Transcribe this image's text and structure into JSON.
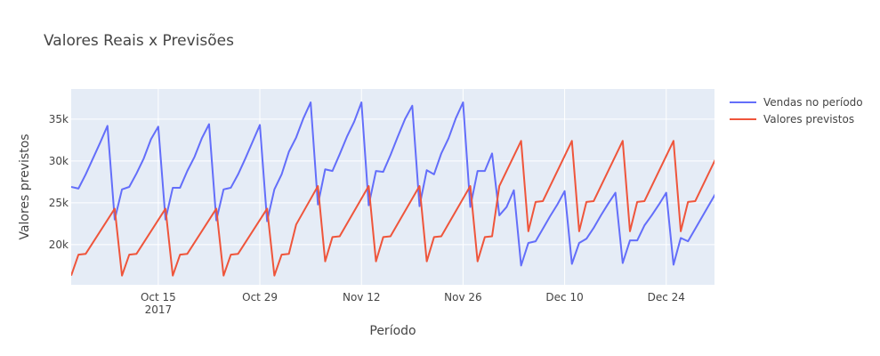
{
  "chart_data": {
    "type": "line",
    "title": "Valores Reais x Previsões",
    "xlabel": "Período",
    "ylabel": "Valores previstos",
    "grid": true,
    "legend_position": "top-right",
    "background_color": "#e5ecf6",
    "xlim": [
      "2017-10-03",
      "2017-12-30"
    ],
    "ylim": [
      15200,
      38600
    ],
    "x_ticks": [
      {
        "date": "2017-10-15",
        "label": "Oct 15",
        "sublabel": "2017"
      },
      {
        "date": "2017-10-29",
        "label": "Oct 29",
        "sublabel": ""
      },
      {
        "date": "2017-11-12",
        "label": "Nov 12",
        "sublabel": ""
      },
      {
        "date": "2017-11-26",
        "label": "Nov 26",
        "sublabel": ""
      },
      {
        "date": "2017-12-10",
        "label": "Dec 10",
        "sublabel": ""
      },
      {
        "date": "2017-12-24",
        "label": "Dec 24",
        "sublabel": ""
      }
    ],
    "y_ticks": [
      {
        "value": 20000,
        "label": "20k"
      },
      {
        "value": 25000,
        "label": "25k"
      },
      {
        "value": 30000,
        "label": "30k"
      },
      {
        "value": 35000,
        "label": "35k"
      }
    ],
    "series": [
      {
        "name": "Vendas no período",
        "color": "#636efa",
        "points": [
          [
            "2017-10-03",
            26900
          ],
          [
            "2017-10-04",
            26700
          ],
          [
            "2017-10-05",
            28400
          ],
          [
            "2017-10-06",
            30300
          ],
          [
            "2017-10-07",
            32200
          ],
          [
            "2017-10-08",
            34200
          ],
          [
            "2017-10-09",
            23000
          ],
          [
            "2017-10-10",
            26600
          ],
          [
            "2017-10-11",
            26900
          ],
          [
            "2017-10-12",
            28500
          ],
          [
            "2017-10-13",
            30300
          ],
          [
            "2017-10-14",
            32600
          ],
          [
            "2017-10-15",
            34100
          ],
          [
            "2017-10-16",
            23000
          ],
          [
            "2017-10-17",
            26800
          ],
          [
            "2017-10-18",
            26800
          ],
          [
            "2017-10-19",
            28800
          ],
          [
            "2017-10-20",
            30500
          ],
          [
            "2017-10-21",
            32700
          ],
          [
            "2017-10-22",
            34400
          ],
          [
            "2017-10-23",
            22900
          ],
          [
            "2017-10-24",
            26600
          ],
          [
            "2017-10-25",
            26800
          ],
          [
            "2017-10-26",
            28400
          ],
          [
            "2017-10-27",
            30300
          ],
          [
            "2017-10-28",
            32300
          ],
          [
            "2017-10-29",
            34300
          ],
          [
            "2017-10-30",
            22800
          ],
          [
            "2017-10-31",
            26600
          ],
          [
            "2017-11-01",
            28400
          ],
          [
            "2017-11-02",
            31100
          ],
          [
            "2017-11-03",
            32800
          ],
          [
            "2017-11-04",
            35100
          ],
          [
            "2017-11-05",
            37000
          ],
          [
            "2017-11-06",
            24800
          ],
          [
            "2017-11-07",
            29000
          ],
          [
            "2017-11-08",
            28800
          ],
          [
            "2017-11-09",
            30800
          ],
          [
            "2017-11-10",
            32900
          ],
          [
            "2017-11-11",
            34700
          ],
          [
            "2017-11-12",
            37000
          ],
          [
            "2017-11-13",
            24700
          ],
          [
            "2017-11-14",
            28800
          ],
          [
            "2017-11-15",
            28700
          ],
          [
            "2017-11-16",
            30700
          ],
          [
            "2017-11-17",
            32900
          ],
          [
            "2017-11-18",
            35000
          ],
          [
            "2017-11-19",
            36600
          ],
          [
            "2017-11-20",
            24600
          ],
          [
            "2017-11-21",
            28900
          ],
          [
            "2017-11-22",
            28400
          ],
          [
            "2017-11-23",
            30900
          ],
          [
            "2017-11-24",
            32700
          ],
          [
            "2017-11-25",
            35100
          ],
          [
            "2017-11-26",
            37000
          ],
          [
            "2017-11-27",
            24500
          ],
          [
            "2017-11-28",
            28800
          ],
          [
            "2017-11-29",
            28800
          ],
          [
            "2017-11-30",
            30900
          ],
          [
            "2017-12-01",
            23500
          ],
          [
            "2017-12-02",
            24500
          ],
          [
            "2017-12-03",
            26500
          ],
          [
            "2017-12-04",
            17500
          ],
          [
            "2017-12-05",
            20200
          ],
          [
            "2017-12-06",
            20400
          ],
          [
            "2017-12-07",
            21900
          ],
          [
            "2017-12-08",
            23400
          ],
          [
            "2017-12-09",
            24800
          ],
          [
            "2017-12-10",
            26400
          ],
          [
            "2017-12-11",
            17700
          ],
          [
            "2017-12-12",
            20200
          ],
          [
            "2017-12-13",
            20700
          ],
          [
            "2017-12-14",
            22000
          ],
          [
            "2017-12-15",
            23500
          ],
          [
            "2017-12-16",
            24900
          ],
          [
            "2017-12-17",
            26200
          ],
          [
            "2017-12-18",
            17800
          ],
          [
            "2017-12-19",
            20500
          ],
          [
            "2017-12-20",
            20500
          ],
          [
            "2017-12-21",
            22300
          ],
          [
            "2017-12-22",
            23500
          ],
          [
            "2017-12-23",
            24800
          ],
          [
            "2017-12-24",
            26200
          ],
          [
            "2017-12-25",
            17600
          ],
          [
            "2017-12-26",
            20800
          ],
          [
            "2017-12-27",
            20400
          ],
          [
            "2017-12-28",
            21900
          ],
          [
            "2017-12-29",
            23400
          ],
          [
            "2017-12-30",
            24900
          ],
          [
            "2017-12-31",
            26400
          ]
        ]
      },
      {
        "name": "Valores previstos",
        "color": "#ef553b",
        "points": [
          [
            "2017-10-03",
            16300
          ],
          [
            "2017-10-04",
            18800
          ],
          [
            "2017-10-05",
            18900
          ],
          [
            "2017-10-09",
            24300
          ],
          [
            "2017-10-10",
            16300
          ],
          [
            "2017-10-11",
            18800
          ],
          [
            "2017-10-12",
            18900
          ],
          [
            "2017-10-16",
            24300
          ],
          [
            "2017-10-17",
            16300
          ],
          [
            "2017-10-18",
            18800
          ],
          [
            "2017-10-19",
            18900
          ],
          [
            "2017-10-23",
            24300
          ],
          [
            "2017-10-24",
            16300
          ],
          [
            "2017-10-25",
            18800
          ],
          [
            "2017-10-26",
            18900
          ],
          [
            "2017-10-30",
            24300
          ],
          [
            "2017-10-31",
            16300
          ],
          [
            "2017-11-01",
            18800
          ],
          [
            "2017-11-02",
            18900
          ],
          [
            "2017-11-03",
            22400
          ],
          [
            "2017-11-06",
            27000
          ],
          [
            "2017-11-07",
            18000
          ],
          [
            "2017-11-08",
            20900
          ],
          [
            "2017-11-09",
            21000
          ],
          [
            "2017-11-13",
            27000
          ],
          [
            "2017-11-14",
            18000
          ],
          [
            "2017-11-15",
            20900
          ],
          [
            "2017-11-16",
            21000
          ],
          [
            "2017-11-20",
            27000
          ],
          [
            "2017-11-21",
            18000
          ],
          [
            "2017-11-22",
            20900
          ],
          [
            "2017-11-23",
            21000
          ],
          [
            "2017-11-27",
            27000
          ],
          [
            "2017-11-28",
            18000
          ],
          [
            "2017-11-29",
            20900
          ],
          [
            "2017-11-30",
            21000
          ],
          [
            "2017-12-01",
            27000
          ],
          [
            "2017-12-04",
            32400
          ],
          [
            "2017-12-05",
            21600
          ],
          [
            "2017-12-06",
            25100
          ],
          [
            "2017-12-07",
            25200
          ],
          [
            "2017-12-11",
            32400
          ],
          [
            "2017-12-12",
            21600
          ],
          [
            "2017-12-13",
            25100
          ],
          [
            "2017-12-14",
            25200
          ],
          [
            "2017-12-18",
            32400
          ],
          [
            "2017-12-19",
            21600
          ],
          [
            "2017-12-20",
            25100
          ],
          [
            "2017-12-21",
            25200
          ],
          [
            "2017-12-25",
            32400
          ],
          [
            "2017-12-26",
            21600
          ],
          [
            "2017-12-27",
            25100
          ],
          [
            "2017-12-28",
            25200
          ],
          [
            "2017-12-31",
            30600
          ]
        ]
      }
    ]
  }
}
